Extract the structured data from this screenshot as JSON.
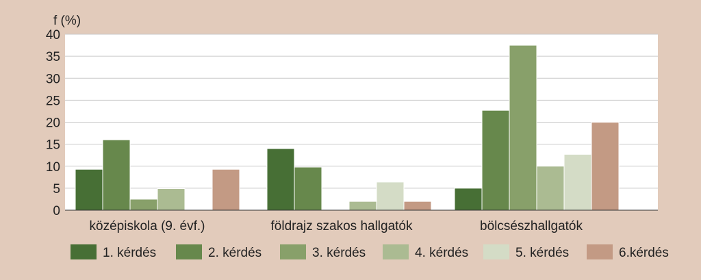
{
  "chart_data": {
    "type": "bar",
    "ylabel": "f (%)",
    "ylim": [
      0,
      40
    ],
    "yticks": [
      0,
      5,
      10,
      15,
      20,
      25,
      30,
      35,
      40
    ],
    "categories": [
      "középiskola (9. évf.)",
      "földrajz szakos hallgatók",
      "bölcsészhallgatók"
    ],
    "series": [
      {
        "name": "1. kérdés",
        "color": "#476f35",
        "values": [
          9.3,
          14.0,
          5.0
        ]
      },
      {
        "name": "2. kérdés",
        "color": "#67884c",
        "values": [
          16.0,
          9.8,
          22.7
        ]
      },
      {
        "name": "3. kérdés",
        "color": "#88a06a",
        "values": [
          2.5,
          0,
          37.5
        ]
      },
      {
        "name": "4. kérdés",
        "color": "#abbb92",
        "values": [
          4.9,
          2.0,
          10.0
        ]
      },
      {
        "name": "5. kérdés",
        "color": "#d4dcc6",
        "values": [
          0,
          6.4,
          12.7
        ]
      },
      {
        "name": "6.kérdés",
        "color": "#c39a84",
        "values": [
          9.3,
          2.0,
          20.0
        ]
      }
    ],
    "grid": true,
    "legend": "bottom"
  }
}
